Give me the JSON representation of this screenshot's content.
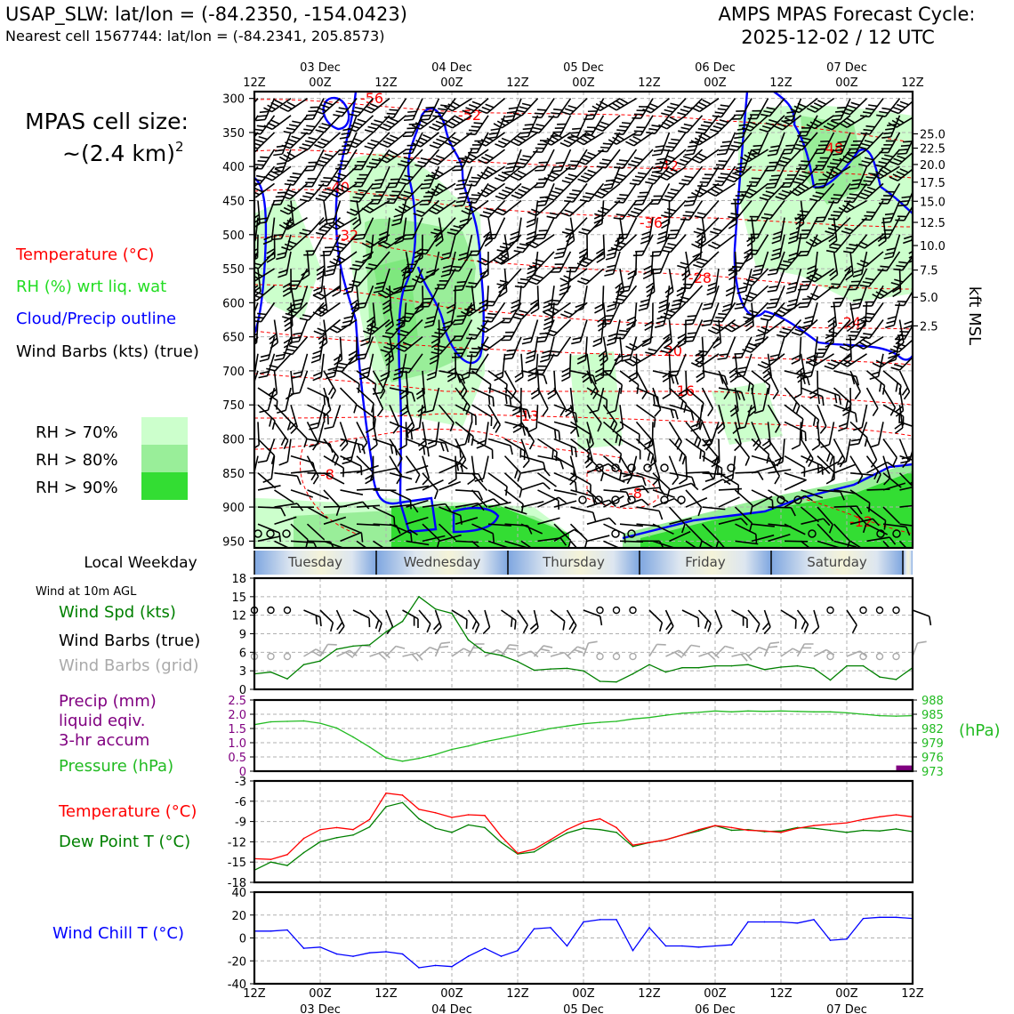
{
  "header": {
    "station_line": "USAP_SLW: lat/lon = (-84.2350, -154.0423)",
    "nearest_line": "Nearest cell 1567744: lat/lon = (-84.2341, 205.8573)",
    "forecast_title": "AMPS MPAS Forecast Cycle:",
    "forecast_cycle": "2025-12-02 / 12 UTC"
  },
  "time_axis": {
    "hour_labels": [
      "12Z",
      "00Z",
      "12Z",
      "00Z",
      "12Z",
      "00Z",
      "12Z",
      "00Z",
      "12Z",
      "00Z",
      "12Z"
    ],
    "date_labels": [
      {
        "index": 1,
        "label": "03 Dec"
      },
      {
        "index": 3,
        "label": "04 Dec"
      },
      {
        "index": 5,
        "label": "05 Dec"
      },
      {
        "index": 7,
        "label": "06 Dec"
      },
      {
        "index": 9,
        "label": "07 Dec"
      }
    ]
  },
  "cell_size": {
    "title": "MPAS cell size:",
    "value": "~(2.4 km)",
    "exponent": "2"
  },
  "legend": {
    "temperature": "Temperature (°C)",
    "rh": "RH (%) wrt liq. wat",
    "cloud": "Cloud/Precip outline",
    "barbs": "Wind Barbs (kts) (true)",
    "rh70": "RH > 70%",
    "rh80": "RH > 80%",
    "rh90": "RH > 90%"
  },
  "colors": {
    "temperature": "#ff0000",
    "rh_label": "#22dd22",
    "cloud": "#0000ff",
    "rh70": "#ccffcc",
    "rh80": "#99ee99",
    "rh90": "#33dd33",
    "wind_speed": "#008000",
    "barbs_grid": "#aaaaaa",
    "precip": "#800080",
    "pressure": "#22bb22",
    "dewpoint": "#008000",
    "windchill": "#0000ff"
  },
  "weekday_band": {
    "title": "Local Weekday",
    "days": [
      "Tuesday",
      "Wednesday",
      "Thursday",
      "Friday",
      "Saturday"
    ]
  },
  "panel_labels": {
    "wind_header": "Wind at 10m AGL",
    "wind_speed": "Wind Spd (kts)",
    "barbs_true": "Wind Barbs (true)",
    "barbs_grid": "Wind Barbs (grid)",
    "precip1": "Precip (mm)",
    "precip2": "liquid eqiv.",
    "precip3": "3-hr accum",
    "pressure": "Pressure (hPa)",
    "pressure_unit": "(hPa)",
    "temperature": "Temperature (°C)",
    "dewpoint": "Dew Point T (°C)",
    "windchill": "Wind Chill T (°C)",
    "kft": "kft MSL"
  },
  "chart_data": [
    {
      "type": "time-height cross section",
      "title": "Temperature, RH, cloud outline and wind barbs",
      "ylabel": "Pressure (hPa)",
      "ylim": [
        960,
        290
      ],
      "y_ticks": [
        300,
        350,
        400,
        450,
        500,
        550,
        600,
        650,
        700,
        750,
        800,
        850,
        900,
        950
      ],
      "kft_ticks": [
        {
          "p": 352,
          "label": "25.0"
        },
        {
          "p": 373,
          "label": "22.5"
        },
        {
          "p": 397,
          "label": "20.0"
        },
        {
          "p": 423,
          "label": "17.5"
        },
        {
          "p": 451,
          "label": "15.0"
        },
        {
          "p": 482,
          "label": "12.5"
        },
        {
          "p": 516,
          "label": "10.0"
        },
        {
          "p": 552,
          "label": "7.5"
        },
        {
          "p": 592,
          "label": "5.0"
        },
        {
          "p": 634,
          "label": "2.5"
        }
      ],
      "isotherm_labels": [
        "-56",
        "-52",
        "-48",
        "-42",
        "-40",
        "-36",
        "-32",
        "-28",
        "-24",
        "-20",
        "-16",
        "-13",
        "-8",
        "-8",
        "-12"
      ]
    },
    {
      "type": "line",
      "title": "Wind at 10m AGL",
      "ylabel": "Wind Spd (kts)",
      "ylim": [
        0,
        18
      ],
      "y_ticks": [
        0,
        3,
        6,
        9,
        12,
        15,
        18
      ],
      "x_hours": [
        0,
        3,
        6,
        9,
        12,
        15,
        18,
        21,
        24,
        27,
        30,
        33,
        36,
        39,
        42,
        45,
        48,
        51,
        54,
        57,
        60,
        63,
        66,
        69,
        72,
        75,
        78,
        81,
        84,
        87,
        90,
        93,
        96,
        99,
        102,
        105,
        108,
        111,
        114,
        117,
        120
      ],
      "series": [
        {
          "name": "Wind Spd (kts)",
          "values": [
            2.5,
            2.8,
            1.7,
            4,
            4.6,
            6.5,
            7,
            7.2,
            9.3,
            11,
            15,
            13,
            12.3,
            8,
            6,
            5.5,
            4.5,
            3.1,
            3.3,
            3.4,
            3,
            1.3,
            1.2,
            2.5,
            4,
            2.8,
            3.5,
            3.5,
            3.8,
            3.8,
            4,
            3.2,
            3.6,
            3.8,
            3.4,
            1.5,
            3.8,
            3.8,
            2,
            1.6,
            3.5
          ]
        }
      ]
    },
    {
      "type": "line",
      "title": "Precip and Pressure",
      "ylabel": "Precip (mm)",
      "ylim": [
        0,
        2.5
      ],
      "y_ticks": [
        "0",
        "0.5",
        "1.0",
        "1.5",
        "2.0",
        "2.5"
      ],
      "y2_ticks": [
        "973",
        "976",
        "979",
        "982",
        "985",
        "988"
      ],
      "y2lim": [
        973,
        988
      ],
      "precip": {
        "hour_start": 117,
        "hour_end": 120,
        "value": 0.2
      },
      "series": [
        {
          "name": "Pressure (hPa)",
          "values": [
            982.8,
            983.4,
            983.5,
            983.6,
            983.1,
            982.1,
            980.2,
            978.1,
            975.8,
            975.1,
            975.7,
            976.5,
            977.6,
            978.3,
            979.2,
            979.9,
            980.6,
            981.3,
            982.0,
            982.5,
            983.0,
            983.3,
            983.5,
            984.0,
            984.3,
            984.8,
            985.2,
            985.4,
            985.7,
            985.5,
            985.7,
            985.6,
            985.7,
            985.6,
            985.5,
            985.5,
            985.3,
            985.0,
            984.7,
            984.6,
            984.7
          ]
        }
      ]
    },
    {
      "type": "line",
      "title": "Temperature and Dew Point",
      "ylim": [
        -18,
        -3
      ],
      "y_ticks": [
        -18,
        -15,
        -12,
        -9,
        -6,
        -3
      ],
      "series": [
        {
          "name": "Temperature (°C)",
          "values": [
            -14.5,
            -14.6,
            -13.9,
            -11.5,
            -10.2,
            -9.9,
            -10.2,
            -8.7,
            -4.8,
            -5.1,
            -7.2,
            -7.7,
            -8.4,
            -8.0,
            -8.1,
            -11.2,
            -13.7,
            -13.1,
            -11.7,
            -10.2,
            -9.1,
            -8.6,
            -9.9,
            -12.5,
            -12.1,
            -11.7,
            -11.0,
            -10.2,
            -9.6,
            -9.9,
            -10.3,
            -10.4,
            -10.6,
            -10.0,
            -9.6,
            -9.4,
            -9.2,
            -8.7,
            -8.3,
            -8.0,
            -8.3
          ]
        },
        {
          "name": "Dew Point T (°C)",
          "values": [
            -16.2,
            -15.0,
            -15.5,
            -13.6,
            -12.0,
            -11.4,
            -11.0,
            -9.8,
            -6.8,
            -6.2,
            -8.6,
            -10.0,
            -10.6,
            -9.5,
            -9.9,
            -12.1,
            -13.8,
            -13.5,
            -12.0,
            -10.7,
            -10.0,
            -10.2,
            -10.6,
            -12.7,
            -12.1,
            -11.7,
            -11.0,
            -10.4,
            -9.6,
            -10.3,
            -10.2,
            -10.5,
            -10.4,
            -9.9,
            -10.0,
            -10.3,
            -10.6,
            -10.3,
            -10.4,
            -10.1,
            -10.5
          ]
        }
      ]
    },
    {
      "type": "line",
      "title": "Wind Chill",
      "ylim": [
        -40,
        40
      ],
      "y_ticks": [
        -40,
        -20,
        0,
        20,
        40
      ],
      "series": [
        {
          "name": "Wind Chill T (°C)",
          "values": [
            6,
            6,
            7,
            -9,
            -8,
            -14,
            -16,
            -13,
            -12,
            -14,
            -26,
            -24,
            -25,
            -16,
            -9,
            -16,
            -11,
            8,
            9,
            -7,
            14,
            16,
            16,
            -11,
            9,
            -7,
            -7,
            -8,
            -7,
            -6,
            14,
            14,
            14,
            13,
            16,
            -2,
            -1,
            17,
            18,
            18,
            17
          ]
        }
      ]
    }
  ]
}
